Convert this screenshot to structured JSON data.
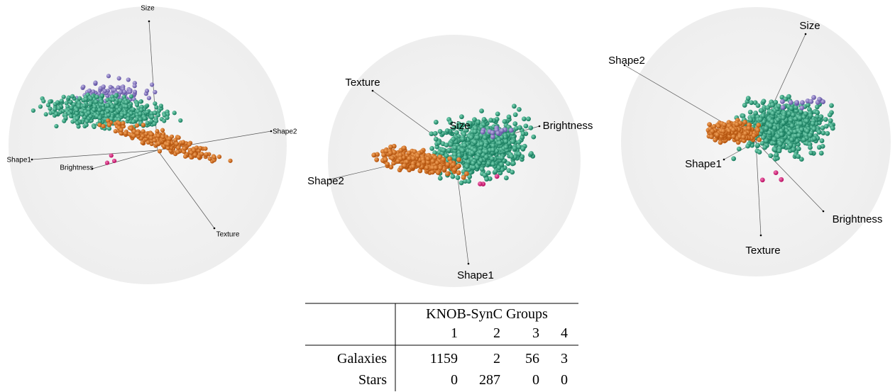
{
  "panels": [
    {
      "axes": [
        {
          "label": "Size"
        },
        {
          "label": "Shape2"
        },
        {
          "label": "Shape1"
        },
        {
          "label": "Brightness"
        },
        {
          "label": "Texture"
        }
      ]
    },
    {
      "axes": [
        {
          "label": "Texture"
        },
        {
          "label": "Size"
        },
        {
          "label": "Brightness"
        },
        {
          "label": "Shape2"
        },
        {
          "label": "Shape1"
        }
      ]
    },
    {
      "axes": [
        {
          "label": "Size"
        },
        {
          "label": "Shape2"
        },
        {
          "label": "Shape1"
        },
        {
          "label": "Brightness"
        },
        {
          "label": "Texture"
        }
      ]
    }
  ],
  "table": {
    "group_header": "KNOB-SynC Groups",
    "columns": [
      1,
      2,
      3,
      4
    ],
    "rows": [
      {
        "label": "Galaxies",
        "values": [
          1159,
          2,
          56,
          3
        ]
      },
      {
        "label": "Stars",
        "values": [
          0,
          287,
          0,
          0
        ]
      }
    ]
  }
}
